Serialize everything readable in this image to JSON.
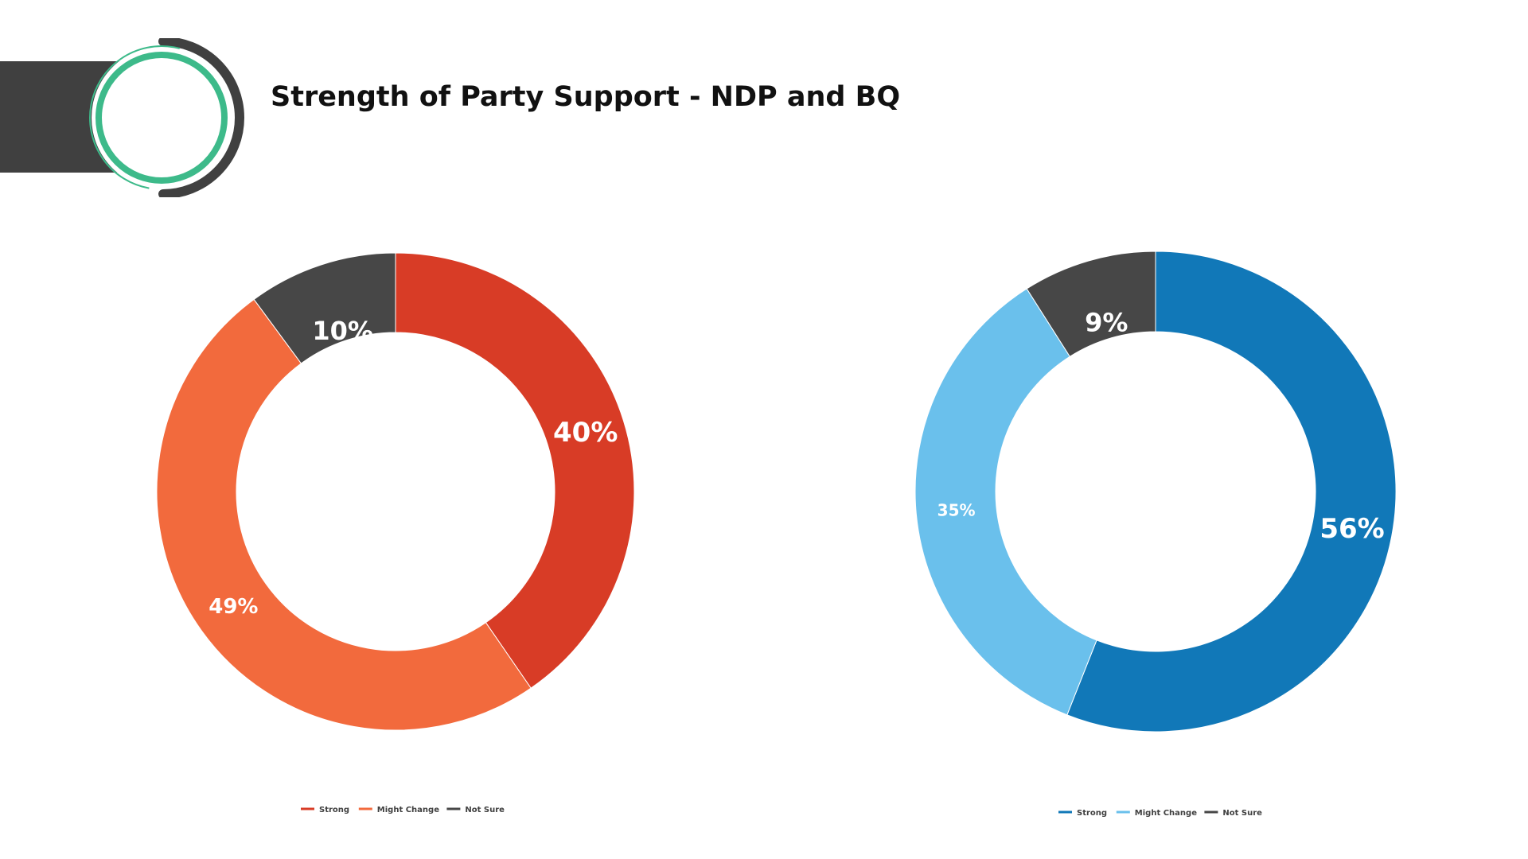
{
  "page": {
    "title": "Strength of Party Support - NDP and BQ"
  },
  "logo": {
    "icon": "circle-logo-icon",
    "colors": {
      "bar": "#404040",
      "ring": "#3DBA8A",
      "arc": "#404040"
    }
  },
  "chart_data": [
    {
      "type": "pie",
      "style": "donut",
      "party": "NDP",
      "categories": [
        "Strong",
        "Might Change",
        "Not Sure"
      ],
      "values": [
        40,
        49,
        10
      ],
      "labels": [
        "40%",
        "49%",
        "10%"
      ],
      "colors": [
        "#D83C26",
        "#F26A3D",
        "#474747"
      ],
      "legend": {
        "position": "bottom",
        "entries": [
          "Strong",
          "Might Change",
          "Not Sure"
        ]
      }
    },
    {
      "type": "pie",
      "style": "donut",
      "party": "BQ",
      "categories": [
        "Strong",
        "Might Change",
        "Not Sure"
      ],
      "values": [
        56,
        35,
        9
      ],
      "labels": [
        "56%",
        "35%",
        "9%"
      ],
      "colors": [
        "#1178B8",
        "#6AC0EC",
        "#474747"
      ],
      "legend": {
        "position": "bottom",
        "entries": [
          "Strong",
          "Might Change",
          "Not Sure"
        ]
      }
    }
  ]
}
